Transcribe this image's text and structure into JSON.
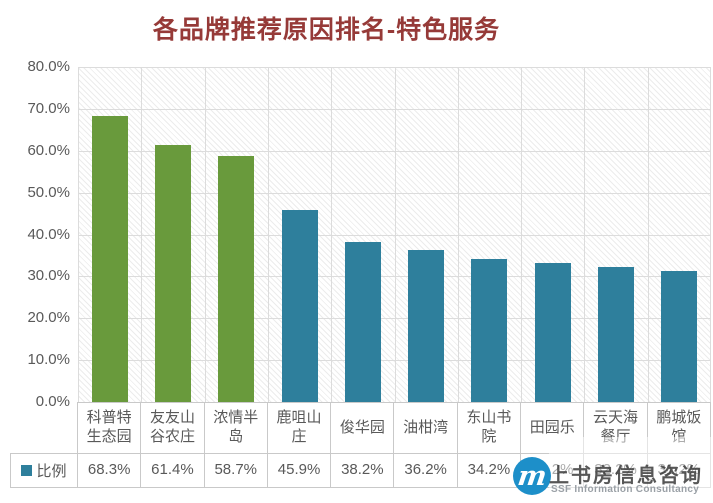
{
  "title": "各品牌推荐原因排名-特色服务",
  "legend": {
    "label": "比例"
  },
  "watermark": {
    "logo_letter": "m",
    "name_cn": "上书房信息咨询",
    "name_en": "SSF Information Consultancy"
  },
  "chart_data": {
    "type": "bar",
    "title": "各品牌推荐原因排名-特色服务",
    "categories": [
      "科普特生态园",
      "友友山谷农庄",
      "浓情半岛",
      "鹿咀山庄",
      "俊华园",
      "油柑湾",
      "东山书院",
      "田园乐",
      "云天海餐厅",
      "鹏城饭馆"
    ],
    "series": [
      {
        "name": "比例",
        "values": [
          68.3,
          61.4,
          58.7,
          45.9,
          38.2,
          36.2,
          34.2,
          33.2,
          32.2,
          31.2
        ]
      }
    ],
    "value_labels": [
      "68.3%",
      "61.4%",
      "58.7%",
      "45.9%",
      "38.2%",
      "36.2%",
      "34.2%",
      "33.2%",
      "32.2%",
      "31.2%"
    ],
    "xlabel": "",
    "ylabel": "",
    "ylim": [
      0,
      80
    ],
    "ytick_step": 10,
    "ytick_labels": [
      "0.0%",
      "10.0%",
      "20.0%",
      "30.0%",
      "40.0%",
      "50.0%",
      "60.0%",
      "70.0%",
      "80.0%"
    ],
    "grid": true,
    "plot_background": "diagonal-hatch",
    "legend_position": "bottom-data-table",
    "colors": {
      "bar_highlight": "#699a3c",
      "bar_default": "#2e7f9c",
      "title": "#963a38",
      "axis_text": "#595959",
      "gridline": "#dcdcdc",
      "watermark_blue": "#1d8fc9"
    },
    "bar_colors": [
      "#699a3c",
      "#699a3c",
      "#699a3c",
      "#2e7f9c",
      "#2e7f9c",
      "#2e7f9c",
      "#2e7f9c",
      "#2e7f9c",
      "#2e7f9c",
      "#2e7f9c"
    ]
  }
}
